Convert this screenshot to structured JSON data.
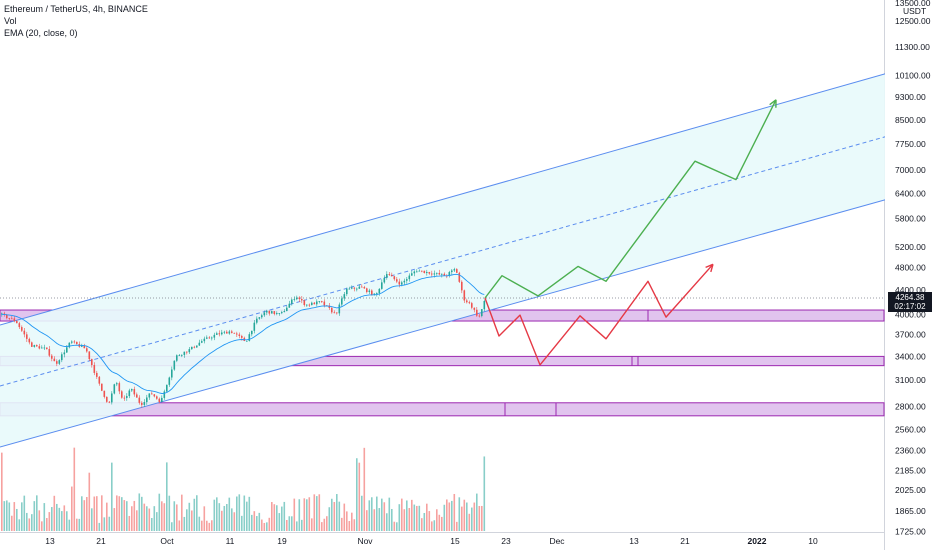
{
  "legend": {
    "symbol": "Ethereum / TetherUS, 4h, BINANCE",
    "vol": "Vol",
    "ema": "EMA (20, close, 0)"
  },
  "price_tag": {
    "price": "4264.38",
    "countdown": "02:17:02"
  },
  "colors": {
    "up": "#26a69a",
    "down": "#ef5350",
    "channel_line": "#5b8def",
    "channel_fill": "#e8fafb",
    "zone_fill": "#e1c4ee",
    "zone_border": "#9c27b0",
    "bull_path": "#4caf50",
    "bear_path": "#e53945",
    "ema": "#2196f3"
  },
  "chart_data": {
    "type": "candlestick",
    "title": "Ethereum / TetherUS, 4h, BINANCE",
    "indicators": [
      "Vol",
      "EMA (20, close, 0)"
    ],
    "currency": "USDT",
    "y_axis": {
      "scale": "log",
      "ticks": [
        "13500.00",
        "12500.00",
        "11300.00",
        "10100.00",
        "9300.00",
        "8500.00",
        "7750.00",
        "7000.00",
        "6400.00",
        "5800.00",
        "5200.00",
        "4800.00",
        "4400.00",
        "4000.00",
        "3700.00",
        "3400.00",
        "3100.00",
        "2800.00",
        "2560.00",
        "2360.00",
        "2185.00",
        "2025.00",
        "1865.00",
        "1725.00"
      ],
      "unit_label": "USDT"
    },
    "x_axis": {
      "ticks": [
        "13",
        "21",
        "Oct",
        "11",
        "19",
        "Nov",
        "15",
        "23",
        "Dec",
        "13",
        "21",
        "2022",
        "10"
      ]
    },
    "path_points": [
      [
        0,
        4000
      ],
      [
        15,
        3900
      ],
      [
        30,
        3550
      ],
      [
        45,
        3500
      ],
      [
        55,
        3300
      ],
      [
        70,
        3600
      ],
      [
        85,
        3500
      ],
      [
        100,
        3000
      ],
      [
        108,
        2820
      ],
      [
        115,
        3100
      ],
      [
        122,
        2850
      ],
      [
        130,
        3000
      ],
      [
        140,
        2820
      ],
      [
        150,
        2950
      ],
      [
        160,
        2850
      ],
      [
        175,
        3400
      ],
      [
        190,
        3500
      ],
      [
        200,
        3600
      ],
      [
        215,
        3700
      ],
      [
        230,
        3750
      ],
      [
        245,
        3600
      ],
      [
        255,
        3900
      ],
      [
        265,
        4050
      ],
      [
        280,
        4000
      ],
      [
        295,
        4300
      ],
      [
        305,
        4150
      ],
      [
        320,
        4200
      ],
      [
        335,
        4000
      ],
      [
        345,
        4400
      ],
      [
        360,
        4450
      ],
      [
        375,
        4300
      ],
      [
        385,
        4700
      ],
      [
        400,
        4500
      ],
      [
        415,
        4750
      ],
      [
        430,
        4700
      ],
      [
        445,
        4650
      ],
      [
        455,
        4780
      ],
      [
        463,
        4250
      ],
      [
        470,
        4150
      ],
      [
        478,
        3950
      ],
      [
        485,
        4264
      ]
    ],
    "projections": {
      "bullish": [
        [
          485,
          4264
        ],
        [
          502,
          4650
        ],
        [
          538,
          4300
        ],
        [
          578,
          4820
        ],
        [
          606,
          4550
        ],
        [
          695,
          7250
        ],
        [
          736,
          6750
        ],
        [
          776,
          9200
        ]
      ],
      "bearish": [
        [
          485,
          4264
        ],
        [
          499,
          3680
        ],
        [
          520,
          3990
        ],
        [
          540,
          3290
        ],
        [
          580,
          3980
        ],
        [
          606,
          3640
        ],
        [
          648,
          4550
        ],
        [
          666,
          3960
        ],
        [
          713,
          4860
        ]
      ]
    },
    "channel": {
      "description": "ascending parallel channel with dashed midline"
    },
    "support_zones": [
      {
        "low": 3900,
        "high": 4070
      },
      {
        "low": 3280,
        "high": 3400
      },
      {
        "low": 2700,
        "high": 2840
      }
    ]
  }
}
